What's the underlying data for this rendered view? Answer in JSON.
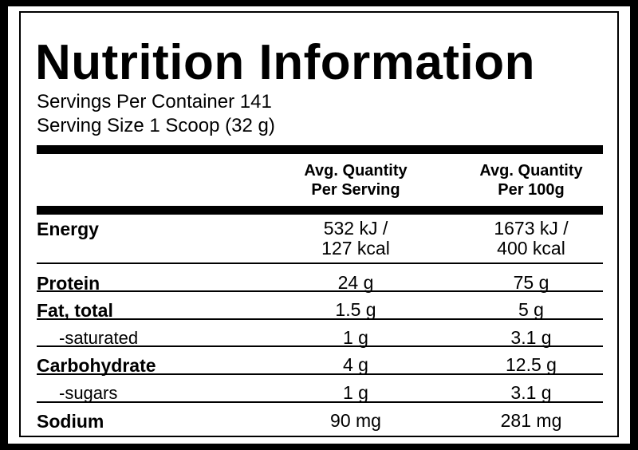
{
  "title": "Nutrition Information",
  "servings": [
    "Servings Per Container 141",
    "Serving Size 1 Scoop (32 g)"
  ],
  "table": {
    "header": [
      [
        "Avg. Quantity",
        "Per Serving"
      ],
      [
        "Avg. Quantity",
        "Per 100g"
      ]
    ],
    "rows": [
      {
        "label": "Energy",
        "per_serving": [
          "532 kJ /",
          "127 kcal"
        ],
        "per_100g": [
          "1673 kJ /",
          "400 kcal"
        ]
      },
      {
        "label": "Protein",
        "per_serving": [
          "24 g"
        ],
        "per_100g": [
          "75 g"
        ]
      },
      {
        "label": "Fat, total",
        "per_serving": [
          "1.5 g"
        ],
        "per_100g": [
          "5 g"
        ]
      },
      {
        "label": "-saturated",
        "per_serving": [
          "1 g"
        ],
        "per_100g": [
          "3.1 g"
        ]
      },
      {
        "label": "Carbohydrate",
        "per_serving": [
          "4 g"
        ],
        "per_100g": [
          "12.5 g"
        ]
      },
      {
        "label": "-sugars",
        "per_serving": [
          "1 g"
        ],
        "per_100g": [
          "3.1 g"
        ]
      },
      {
        "label": "Sodium",
        "per_serving": [
          "90 mg"
        ],
        "per_100g": [
          "281 mg"
        ]
      }
    ]
  }
}
